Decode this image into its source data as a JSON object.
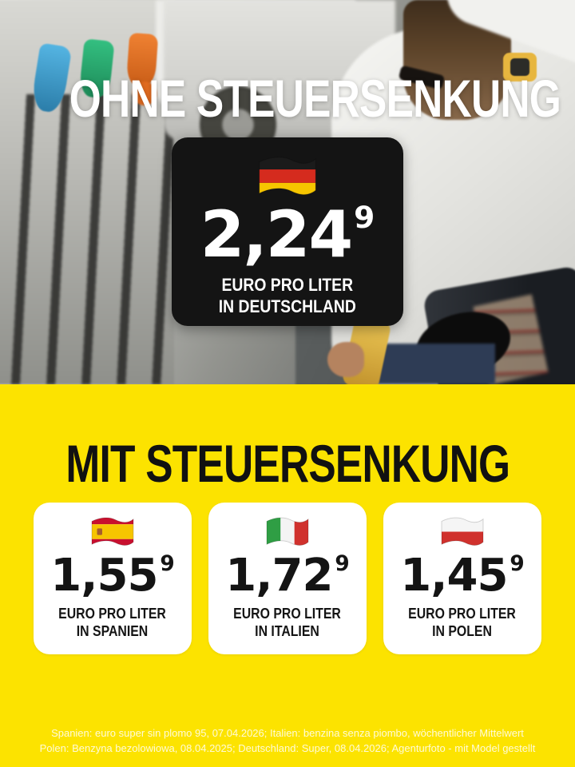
{
  "top": {
    "headline": "OHNE STEUERSENKUNG",
    "card": {
      "flag": "germany",
      "price": "2,24",
      "price_sup": "9",
      "caption_line1": "EURO PRO LITER",
      "caption_line2": "IN DEUTSCHLAND"
    }
  },
  "bottom": {
    "headline": "MIT STEUERSENKUNG",
    "cards": [
      {
        "flag": "spain",
        "price": "1,55",
        "price_sup": "9",
        "caption_line1": "EURO PRO LITER",
        "caption_line2": "IN SPANIEN"
      },
      {
        "flag": "italy",
        "price": "1,72",
        "price_sup": "9",
        "caption_line1": "EURO PRO LITER",
        "caption_line2": "IN ITALIEN"
      },
      {
        "flag": "poland",
        "price": "1,45",
        "price_sup": "9",
        "caption_line1": "EURO PRO LITER",
        "caption_line2": "IN POLEN"
      }
    ],
    "footnote_line1": "Spanien: euro super sin plomo 95, 07.04.2026; Italien: benzina senza piombo, wöchentlicher Mittelwert",
    "footnote_line2": "Polen: Benzyna bezolowiowa, 08.04.2025; Deutschland: Super, 08.04.2026; Agenturfoto - mit Model gestellt"
  },
  "colors": {
    "brand_yellow": "#FCE300",
    "card_black": "#141414",
    "headline_white": "#FFFFFF",
    "headline_black": "#111111"
  },
  "flags": {
    "germany": {
      "orientation": "horizontal",
      "stripes": [
        [
          "#1b1b1b",
          1
        ],
        [
          "#d52b1e",
          1
        ],
        [
          "#f6c500",
          1
        ]
      ]
    },
    "spain": {
      "orientation": "horizontal",
      "stripes": [
        [
          "#c8102e",
          1
        ],
        [
          "#f6c500",
          2
        ],
        [
          "#c8102e",
          1
        ]
      ],
      "emblem": "#a65e2e"
    },
    "italy": {
      "orientation": "vertical",
      "stripes": [
        [
          "#2f9e44",
          1
        ],
        [
          "#f4f4f4",
          1
        ],
        [
          "#d0312d",
          1
        ]
      ]
    },
    "poland": {
      "orientation": "horizontal",
      "stripes": [
        [
          "#f5f5f5",
          1
        ],
        [
          "#d0312d",
          1
        ]
      ]
    }
  }
}
